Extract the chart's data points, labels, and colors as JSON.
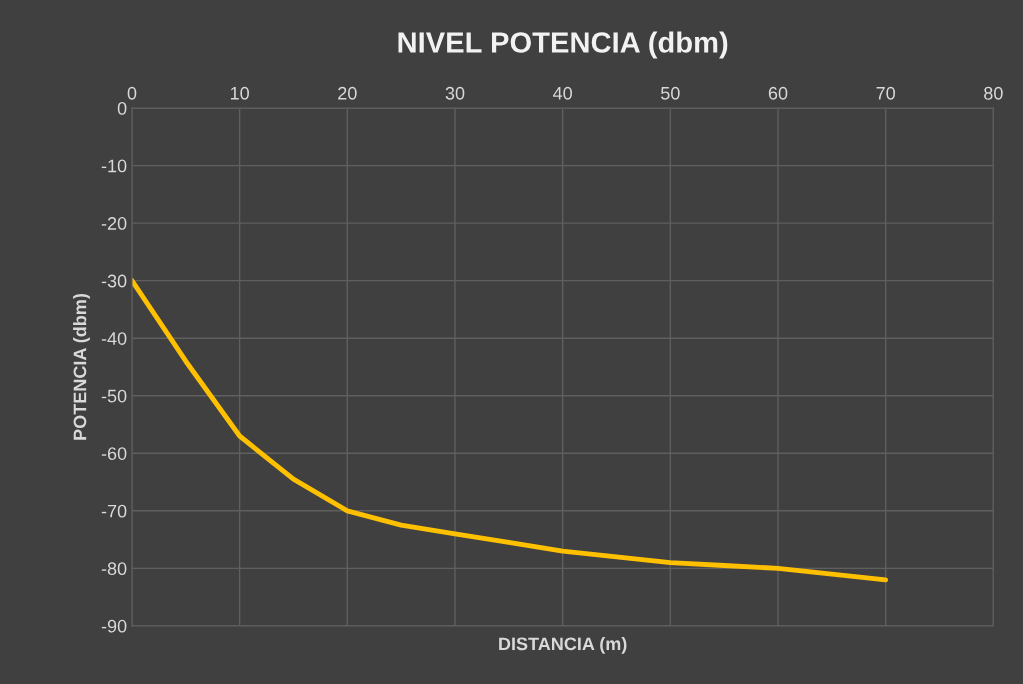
{
  "chart_data": {
    "type": "line",
    "title": "NIVEL POTENCIA (dbm)",
    "xlabel": "DISTANCIA (m)",
    "ylabel": "POTENCIA (dbm)",
    "x": [
      0,
      5,
      10,
      15,
      20,
      25,
      30,
      35,
      40,
      45,
      50,
      55,
      60,
      65,
      70
    ],
    "series": [
      {
        "color": "#ffc000",
        "values": [
          -30,
          -44,
          -57,
          -64.5,
          -70,
          -72.5,
          -74,
          -75.5,
          -77,
          -78,
          -79,
          -79.5,
          -80,
          -81,
          -82
        ]
      }
    ],
    "xlim": [
      0,
      80
    ],
    "xticks": [
      0,
      10,
      20,
      30,
      40,
      50,
      60,
      70,
      80
    ],
    "ylim": [
      -90,
      0
    ],
    "yticks": [
      -90,
      -80,
      -70,
      -60,
      -50,
      -40,
      -30,
      -20,
      -10,
      0
    ],
    "grid": true,
    "marker": "none",
    "line_style": "solid"
  }
}
